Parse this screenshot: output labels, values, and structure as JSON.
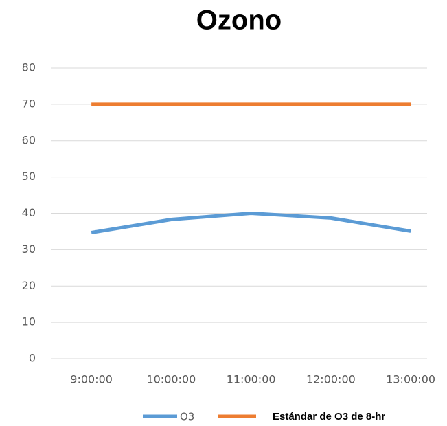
{
  "chart_data": {
    "type": "line",
    "title": "Ozono",
    "categories": [
      "9:00:00",
      "10:00:00",
      "11:00:00",
      "12:00:00",
      "13:00:00"
    ],
    "series": [
      {
        "name": "O3",
        "color": "#5b9bd5",
        "values": [
          34.7,
          38.3,
          40,
          38.7,
          35.1
        ]
      },
      {
        "name": "Estándar  de O3 de 8-hr",
        "color": "#ed7d31",
        "values": [
          70,
          70,
          70,
          70,
          70
        ]
      }
    ],
    "ylim": [
      0,
      80
    ],
    "yticks": [
      0,
      10,
      20,
      30,
      40,
      50,
      60,
      70,
      80
    ],
    "grid": true,
    "legend": "bottom"
  }
}
